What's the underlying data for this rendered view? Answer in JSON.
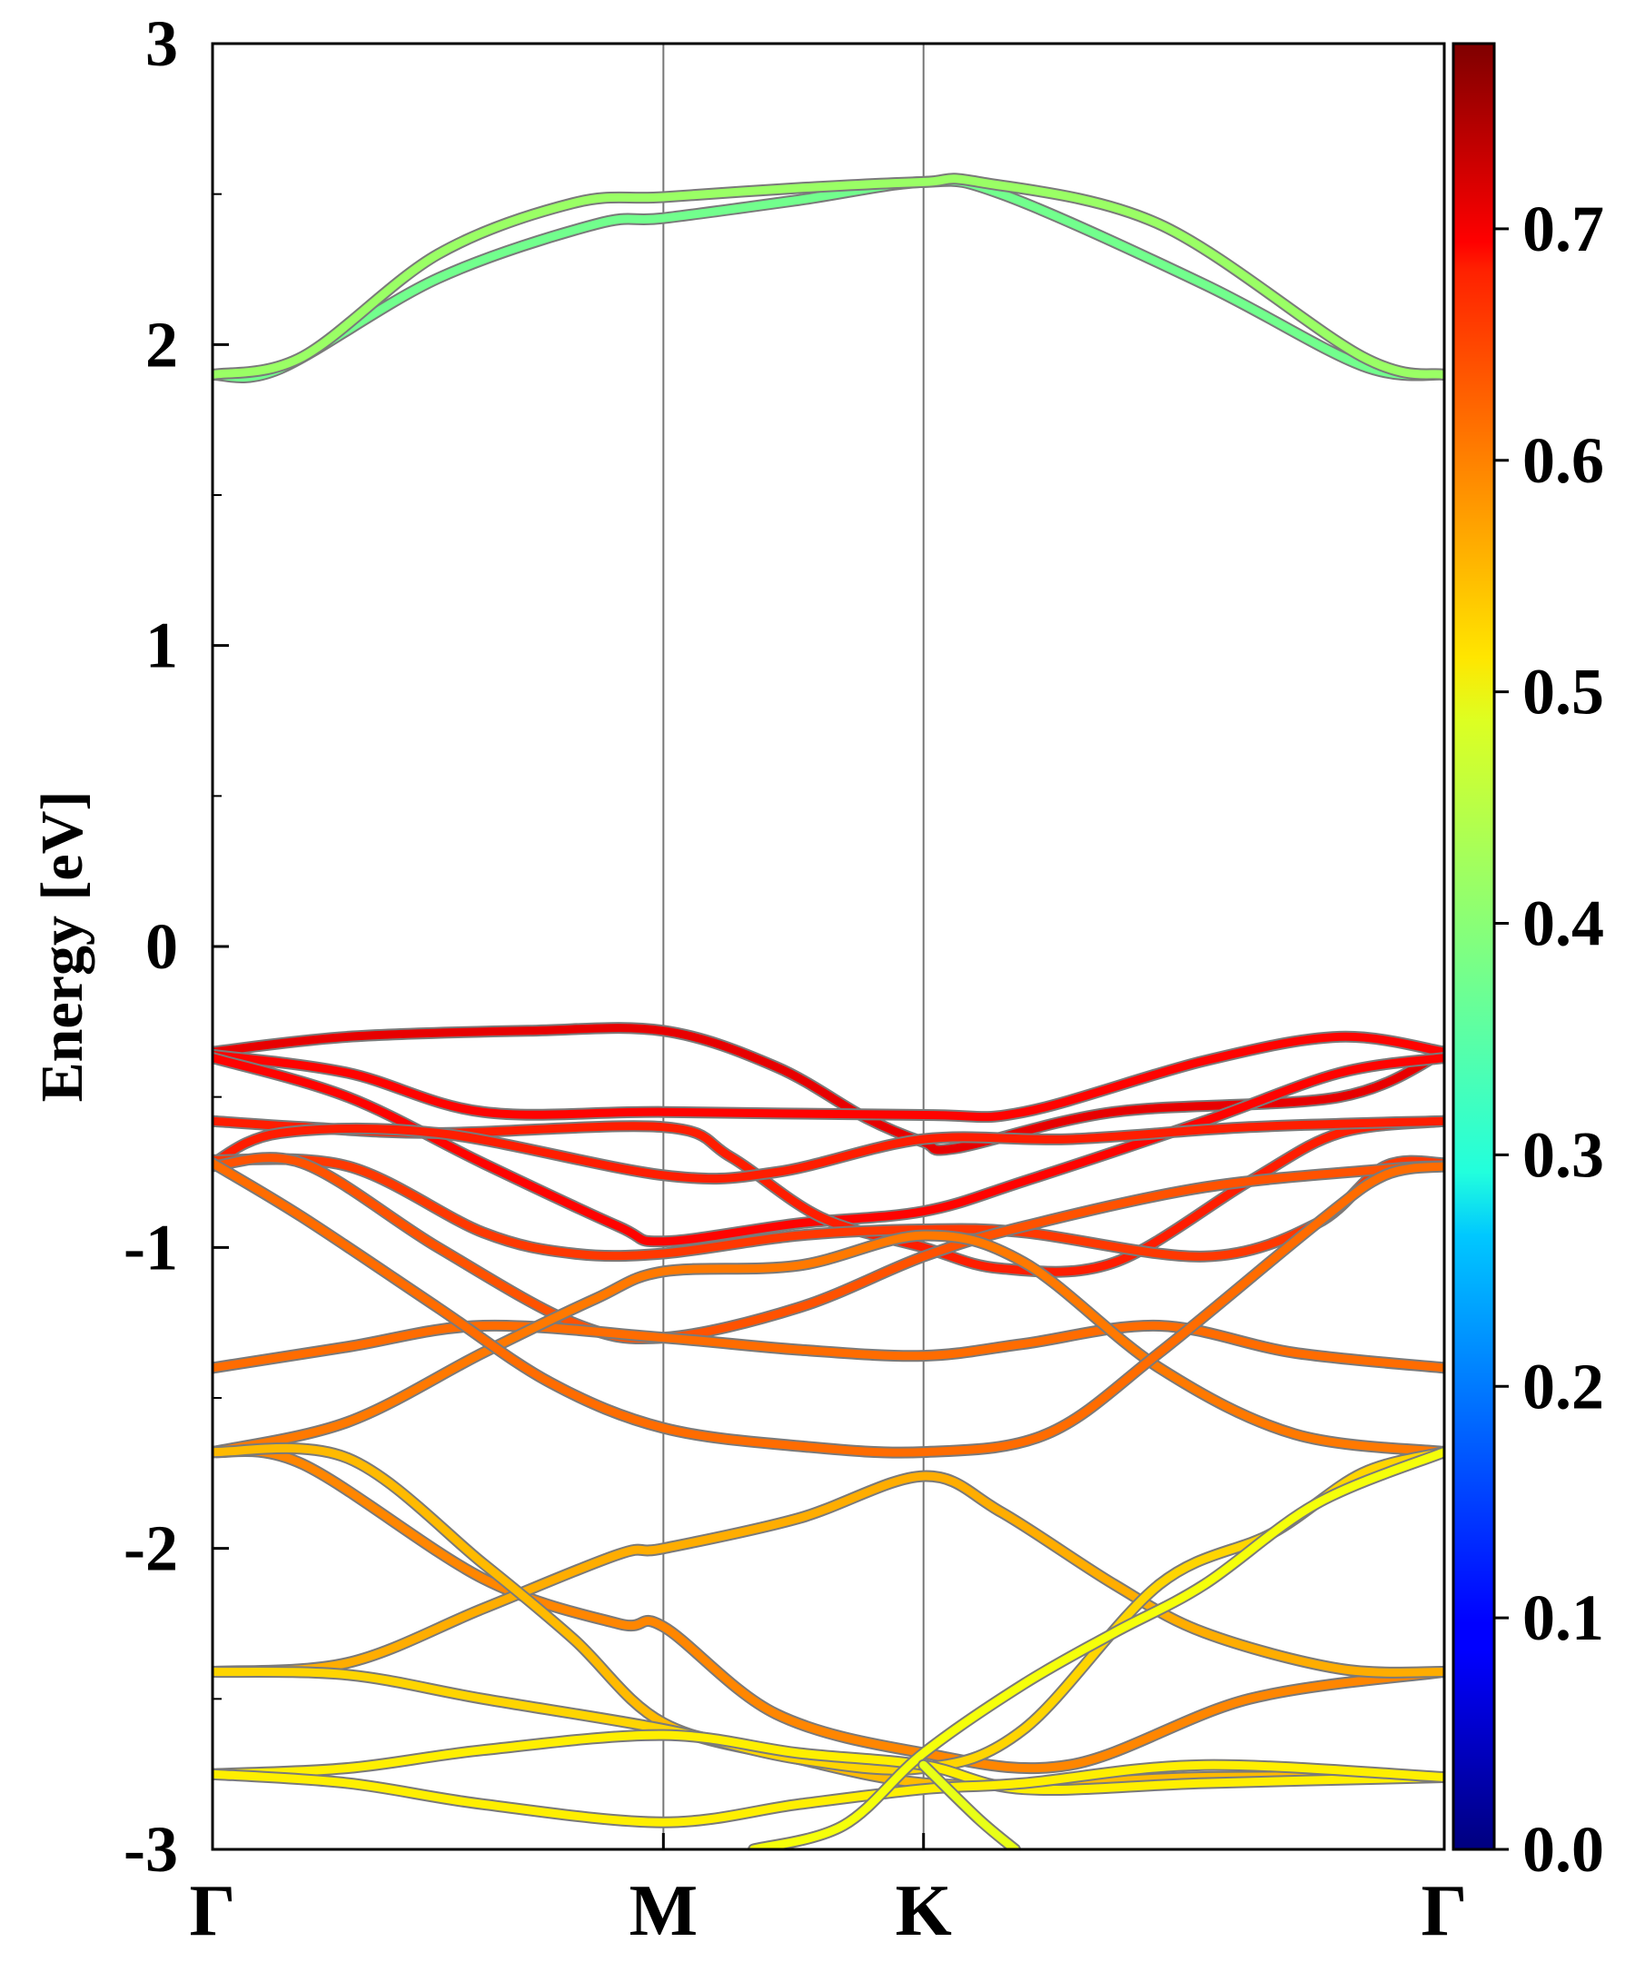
{
  "chart_data": {
    "type": "line",
    "title": "",
    "xlabel": "",
    "ylabel": "Energy [eV]",
    "ylim": [
      -3,
      3
    ],
    "xlim": [
      0,
      2.732
    ],
    "grid": false,
    "legend": "none",
    "y_ticks": [
      {
        "value": -3,
        "label": "-3"
      },
      {
        "value": -2,
        "label": "-2"
      },
      {
        "value": -1,
        "label": "-1"
      },
      {
        "value": 0,
        "label": "0"
      },
      {
        "value": 1,
        "label": "1"
      },
      {
        "value": 2,
        "label": "2"
      },
      {
        "value": 3,
        "label": "3"
      }
    ],
    "y_minor_ticks": [
      -2.5,
      -1.5,
      -0.5,
      0.5,
      1.5,
      2.5
    ],
    "k_points": [
      {
        "label": "Γ",
        "x": 0
      },
      {
        "label": "M",
        "x": 1.0
      },
      {
        "label": "K",
        "x": 1.577
      },
      {
        "label": "Γ",
        "x": 2.732
      }
    ],
    "colorbar": {
      "colormap": "jet",
      "range": [
        0,
        0.78
      ],
      "ticks": [
        {
          "value": 0.0,
          "label": "0.0"
        },
        {
          "value": 0.1,
          "label": "0.1"
        },
        {
          "value": 0.2,
          "label": "0.2"
        },
        {
          "value": 0.3,
          "label": "0.3"
        },
        {
          "value": 0.4,
          "label": "0.4"
        },
        {
          "value": 0.5,
          "label": "0.5"
        },
        {
          "value": 0.6,
          "label": "0.6"
        },
        {
          "value": 0.7,
          "label": "0.7"
        }
      ]
    },
    "series": [
      {
        "weight": 0.38,
        "points": [
          [
            0,
            1.9
          ],
          [
            0.15,
            1.92
          ],
          [
            0.5,
            2.22
          ],
          [
            0.85,
            2.4
          ],
          [
            1.0,
            2.42
          ],
          [
            1.3,
            2.48
          ],
          [
            1.577,
            2.54
          ],
          [
            1.75,
            2.5
          ],
          [
            2.2,
            2.2
          ],
          [
            2.55,
            1.93
          ],
          [
            2.732,
            1.9
          ]
        ]
      },
      {
        "weight": 0.41,
        "points": [
          [
            0,
            1.9
          ],
          [
            0.2,
            1.96
          ],
          [
            0.5,
            2.3
          ],
          [
            0.8,
            2.47
          ],
          [
            1.0,
            2.49
          ],
          [
            1.3,
            2.52
          ],
          [
            1.577,
            2.54
          ],
          [
            1.7,
            2.54
          ],
          [
            2.1,
            2.4
          ],
          [
            2.55,
            1.96
          ],
          [
            2.732,
            1.9
          ]
        ]
      },
      {
        "weight": 0.7,
        "points": [
          [
            0,
            -0.35
          ],
          [
            0.3,
            -0.3
          ],
          [
            0.7,
            -0.28
          ],
          [
            1.0,
            -0.28
          ],
          [
            1.25,
            -0.4
          ],
          [
            1.45,
            -0.57
          ],
          [
            1.577,
            -0.65
          ],
          [
            1.65,
            -0.67
          ],
          [
            2.0,
            -0.55
          ],
          [
            2.5,
            -0.5
          ],
          [
            2.732,
            -0.35
          ]
        ]
      },
      {
        "weight": 0.68,
        "points": [
          [
            0,
            -0.36
          ],
          [
            0.3,
            -0.42
          ],
          [
            0.6,
            -0.55
          ],
          [
            1.0,
            -0.55
          ],
          [
            1.577,
            -0.56
          ],
          [
            1.8,
            -0.55
          ],
          [
            2.2,
            -0.38
          ],
          [
            2.5,
            -0.3
          ],
          [
            2.732,
            -0.35
          ]
        ]
      },
      {
        "weight": 0.68,
        "points": [
          [
            0,
            -0.37
          ],
          [
            0.3,
            -0.5
          ],
          [
            0.6,
            -0.72
          ],
          [
            0.9,
            -0.93
          ],
          [
            1.0,
            -0.98
          ],
          [
            1.3,
            -0.92
          ],
          [
            1.577,
            -0.88
          ],
          [
            1.8,
            -0.78
          ],
          [
            2.2,
            -0.58
          ],
          [
            2.5,
            -0.42
          ],
          [
            2.732,
            -0.37
          ]
        ]
      },
      {
        "weight": 0.66,
        "points": [
          [
            0,
            -0.58
          ],
          [
            0.2,
            -0.6
          ],
          [
            0.5,
            -0.62
          ],
          [
            1.0,
            -0.6
          ],
          [
            1.15,
            -0.7
          ],
          [
            1.35,
            -0.9
          ],
          [
            1.577,
            -1.0
          ],
          [
            1.75,
            -1.07
          ],
          [
            2.0,
            -1.05
          ],
          [
            2.3,
            -0.78
          ],
          [
            2.5,
            -0.62
          ],
          [
            2.732,
            -0.58
          ]
        ]
      },
      {
        "weight": 0.66,
        "points": [
          [
            0,
            -0.72
          ],
          [
            0.15,
            -0.62
          ],
          [
            0.5,
            -0.62
          ],
          [
            1.0,
            -0.76
          ],
          [
            1.25,
            -0.75
          ],
          [
            1.577,
            -0.64
          ],
          [
            1.9,
            -0.64
          ],
          [
            2.3,
            -0.6
          ],
          [
            2.732,
            -0.58
          ]
        ]
      },
      {
        "weight": 0.64,
        "points": [
          [
            0,
            -0.71
          ],
          [
            0.3,
            -0.73
          ],
          [
            0.6,
            -0.95
          ],
          [
            0.8,
            -1.02
          ],
          [
            1.0,
            -1.02
          ],
          [
            1.3,
            -0.96
          ],
          [
            1.577,
            -0.94
          ],
          [
            1.8,
            -0.95
          ],
          [
            2.2,
            -1.03
          ],
          [
            2.45,
            -0.92
          ],
          [
            2.6,
            -0.73
          ],
          [
            2.732,
            -0.72
          ]
        ]
      },
      {
        "weight": 0.62,
        "points": [
          [
            0,
            -0.73
          ],
          [
            0.2,
            -0.72
          ],
          [
            0.5,
            -1.0
          ],
          [
            0.8,
            -1.25
          ],
          [
            1.0,
            -1.3
          ],
          [
            1.3,
            -1.2
          ],
          [
            1.577,
            -1.03
          ],
          [
            1.8,
            -0.93
          ],
          [
            2.2,
            -0.8
          ],
          [
            2.6,
            -0.74
          ],
          [
            2.732,
            -0.73
          ]
        ]
      },
      {
        "weight": 0.6,
        "points": [
          [
            0,
            -1.4
          ],
          [
            0.3,
            -1.33
          ],
          [
            0.6,
            -1.26
          ],
          [
            1.0,
            -1.3
          ],
          [
            1.3,
            -1.34
          ],
          [
            1.577,
            -1.36
          ],
          [
            1.8,
            -1.32
          ],
          [
            2.1,
            -1.26
          ],
          [
            2.4,
            -1.35
          ],
          [
            2.732,
            -1.4
          ]
        ]
      },
      {
        "weight": 0.59,
        "points": [
          [
            0,
            -1.68
          ],
          [
            0.3,
            -1.58
          ],
          [
            0.6,
            -1.35
          ],
          [
            0.85,
            -1.17
          ],
          [
            1.0,
            -1.08
          ],
          [
            1.3,
            -1.06
          ],
          [
            1.577,
            -0.96
          ],
          [
            1.8,
            -1.05
          ],
          [
            2.1,
            -1.4
          ],
          [
            2.4,
            -1.62
          ],
          [
            2.732,
            -1.68
          ]
        ]
      },
      {
        "weight": 0.6,
        "points": [
          [
            0,
            -0.72
          ],
          [
            0.2,
            -0.9
          ],
          [
            0.5,
            -1.2
          ],
          [
            0.75,
            -1.45
          ],
          [
            1.0,
            -1.6
          ],
          [
            1.3,
            -1.66
          ],
          [
            1.577,
            -1.68
          ],
          [
            1.85,
            -1.62
          ],
          [
            2.1,
            -1.35
          ],
          [
            2.45,
            -0.92
          ],
          [
            2.6,
            -0.76
          ],
          [
            2.732,
            -0.73
          ]
        ]
      },
      {
        "weight": 0.58,
        "points": [
          [
            0,
            -1.68
          ],
          [
            0.2,
            -1.72
          ],
          [
            0.6,
            -2.1
          ],
          [
            0.9,
            -2.25
          ],
          [
            1.0,
            -2.26
          ],
          [
            1.25,
            -2.55
          ],
          [
            1.577,
            -2.68
          ],
          [
            1.9,
            -2.72
          ],
          [
            2.3,
            -2.5
          ],
          [
            2.732,
            -2.41
          ]
        ]
      },
      {
        "weight": 0.55,
        "points": [
          [
            0,
            -2.41
          ],
          [
            0.3,
            -2.38
          ],
          [
            0.6,
            -2.2
          ],
          [
            0.9,
            -2.02
          ],
          [
            1.0,
            -2.0
          ],
          [
            1.3,
            -1.9
          ],
          [
            1.577,
            -1.76
          ],
          [
            1.75,
            -1.88
          ],
          [
            2.0,
            -2.12
          ],
          [
            2.2,
            -2.28
          ],
          [
            2.5,
            -2.4
          ],
          [
            2.732,
            -2.41
          ]
        ]
      },
      {
        "weight": 0.54,
        "points": [
          [
            0,
            -1.68
          ],
          [
            0.3,
            -1.7
          ],
          [
            0.6,
            -2.05
          ],
          [
            0.8,
            -2.3
          ],
          [
            1.0,
            -2.58
          ],
          [
            1.3,
            -2.7
          ],
          [
            1.577,
            -2.78
          ],
          [
            1.9,
            -2.78
          ],
          [
            2.2,
            -2.76
          ],
          [
            2.732,
            -2.76
          ]
        ]
      },
      {
        "weight": 0.52,
        "points": [
          [
            0,
            -2.41
          ],
          [
            0.3,
            -2.42
          ],
          [
            0.6,
            -2.5
          ],
          [
            1.0,
            -2.6
          ],
          [
            1.3,
            -2.7
          ],
          [
            1.577,
            -2.73
          ],
          [
            1.8,
            -2.6
          ],
          [
            2.1,
            -2.12
          ],
          [
            2.35,
            -1.95
          ],
          [
            2.55,
            -1.75
          ],
          [
            2.732,
            -1.68
          ]
        ]
      },
      {
        "weight": 0.5,
        "points": [
          [
            0,
            -2.75
          ],
          [
            0.3,
            -2.73
          ],
          [
            0.6,
            -2.67
          ],
          [
            1.0,
            -2.62
          ],
          [
            1.3,
            -2.68
          ],
          [
            1.577,
            -2.72
          ],
          [
            1.8,
            -2.8
          ],
          [
            2.2,
            -2.78
          ],
          [
            2.732,
            -2.76
          ]
        ]
      },
      {
        "weight": 0.5,
        "points": [
          [
            0,
            -2.75
          ],
          [
            0.3,
            -2.78
          ],
          [
            0.6,
            -2.85
          ],
          [
            1.0,
            -2.91
          ],
          [
            1.3,
            -2.85
          ],
          [
            1.577,
            -2.8
          ],
          [
            1.8,
            -2.78
          ],
          [
            2.2,
            -2.72
          ],
          [
            2.732,
            -2.76
          ]
        ]
      },
      {
        "weight": 0.48,
        "points": [
          [
            1.2,
            -3.0
          ],
          [
            1.4,
            -2.92
          ],
          [
            1.577,
            -2.68
          ],
          [
            1.8,
            -2.45
          ],
          [
            2.0,
            -2.28
          ],
          [
            2.2,
            -2.12
          ],
          [
            2.45,
            -1.85
          ],
          [
            2.732,
            -1.68
          ]
        ]
      },
      {
        "weight": 0.47,
        "points": [
          [
            1.577,
            -2.72
          ],
          [
            1.7,
            -2.9
          ],
          [
            1.78,
            -3.0
          ]
        ]
      }
    ]
  }
}
